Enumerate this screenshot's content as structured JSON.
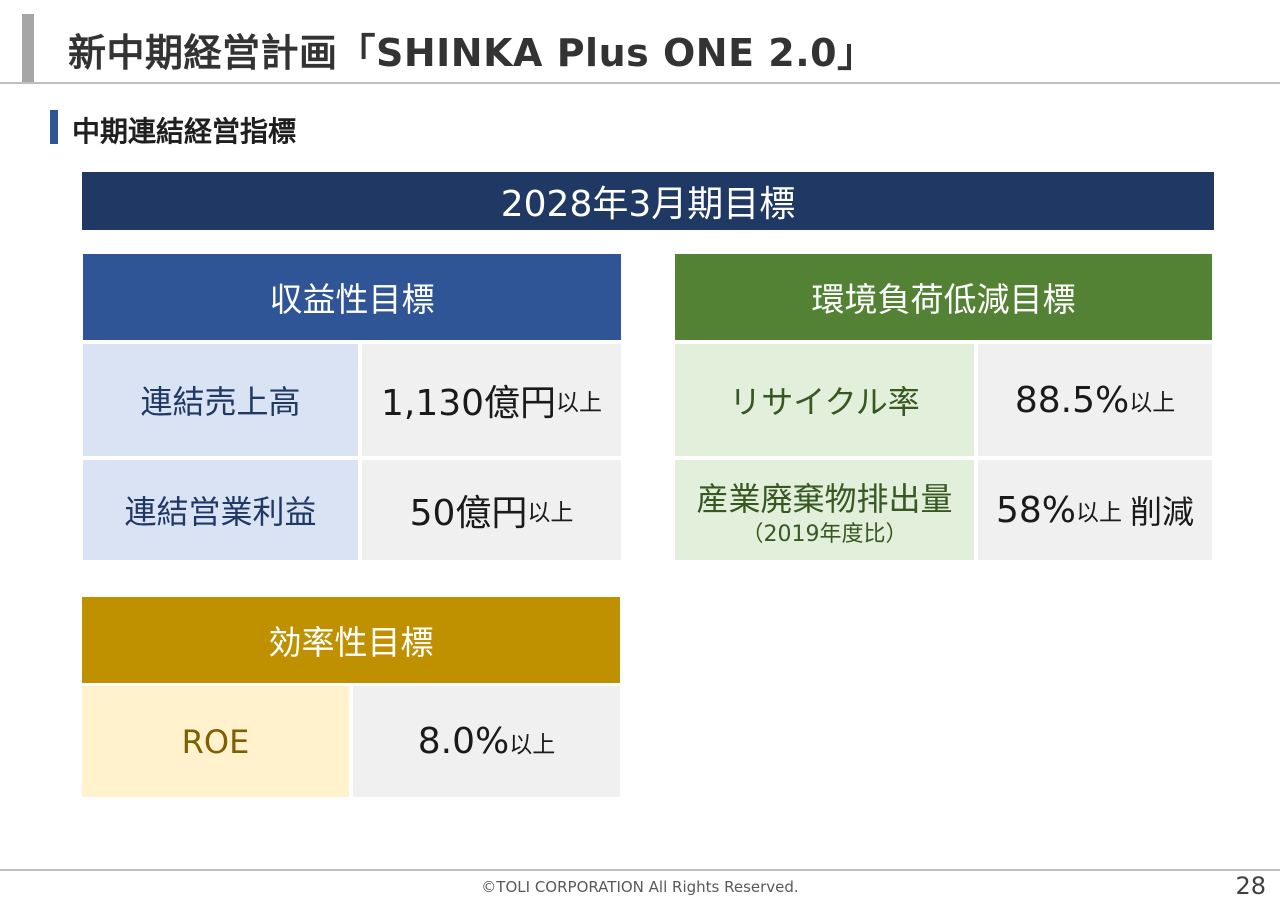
{
  "slide": {
    "title": "新中期経営計画「SHINKA Plus ONE 2.0」",
    "section": "中期連結経営指標",
    "banner": "2028年3月期目標"
  },
  "profitability": {
    "header": "収益性目標",
    "rows": [
      {
        "label": "連結売上高",
        "value": "1,130億円",
        "suffix": "以上"
      },
      {
        "label": "連結営業利益",
        "value": "50億円",
        "suffix": "以上"
      }
    ]
  },
  "environment": {
    "header": "環境負荷低減目標",
    "rows": [
      {
        "label": "リサイクル率",
        "sublabel": "",
        "value": "88.5%",
        "suffix": "以上",
        "extra": ""
      },
      {
        "label": "産業廃棄物排出量",
        "sublabel": "（2019年度比）",
        "value": "58%",
        "suffix": "以上",
        "extra": "削減"
      }
    ]
  },
  "efficiency": {
    "header": "効率性目標",
    "rows": [
      {
        "label": "ROE",
        "value": "8.0%",
        "suffix": "以上"
      }
    ]
  },
  "footer": {
    "copyright": "©TOLI CORPORATION All Rights Reserved.",
    "page": "28"
  },
  "colors": {
    "banner": "#1f3864",
    "profitability_header": "#2f5597",
    "environment_header": "#548235",
    "efficiency_header": "#bf9000"
  }
}
